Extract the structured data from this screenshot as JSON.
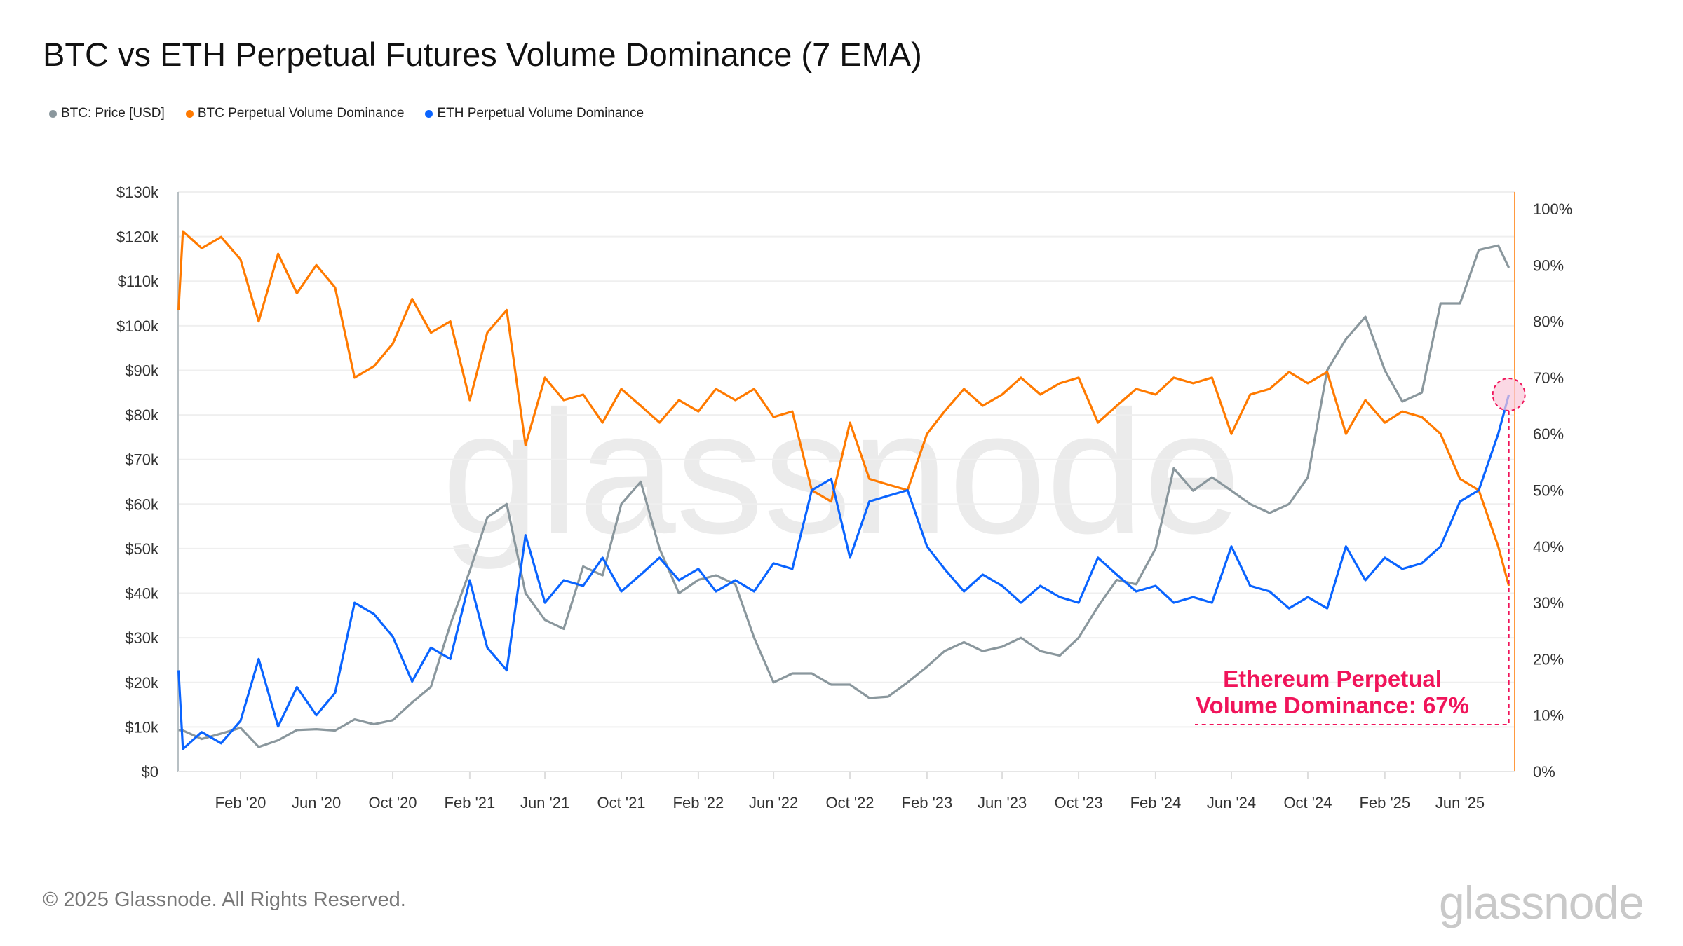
{
  "title": "BTC vs ETH Perpetual Futures Volume Dominance (7 EMA)",
  "legend": [
    {
      "label": "BTC: Price [USD]",
      "color": "#8a979d"
    },
    {
      "label": "BTC Perpetual Volume Dominance",
      "color": "#ff7a00"
    },
    {
      "label": "ETH Perpetual Volume Dominance",
      "color": "#0a64ff"
    }
  ],
  "footer": "© 2025 Glassnode. All Rights Reserved.",
  "logo": "glassnode",
  "watermark": "glassnode",
  "annotation": {
    "line1": "Ethereum Perpetual",
    "line2": "Volume Dominance: 67%",
    "color": "#f0145a"
  },
  "chart_data": {
    "type": "line",
    "title": "BTC vs ETH Perpetual Futures Volume Dominance (7 EMA)",
    "grid": true,
    "legend_position": "top-left",
    "y_left": {
      "range": [
        0,
        130000
      ],
      "ticks": [
        "$0",
        "$10k",
        "$20k",
        "$30k",
        "$40k",
        "$50k",
        "$60k",
        "$70k",
        "$80k",
        "$90k",
        "$100k",
        "$110k",
        "$120k",
        "$130k"
      ]
    },
    "y_right": {
      "range": [
        0,
        100
      ],
      "ticks": [
        "0%",
        "10%",
        "20%",
        "30%",
        "40%",
        "50%",
        "60%",
        "70%",
        "80%",
        "90%",
        "100%"
      ]
    },
    "x_ticks": [
      {
        "label": "Feb '20",
        "date": "2020-02-01"
      },
      {
        "label": "Jun '20",
        "date": "2020-06-01"
      },
      {
        "label": "Oct '20",
        "date": "2020-10-01"
      },
      {
        "label": "Feb '21",
        "date": "2021-02-01"
      },
      {
        "label": "Jun '21",
        "date": "2021-06-01"
      },
      {
        "label": "Oct '21",
        "date": "2021-10-01"
      },
      {
        "label": "Feb '22",
        "date": "2022-02-01"
      },
      {
        "label": "Jun '22",
        "date": "2022-06-01"
      },
      {
        "label": "Oct '22",
        "date": "2022-10-01"
      },
      {
        "label": "Feb '23",
        "date": "2023-02-01"
      },
      {
        "label": "Jun '23",
        "date": "2023-06-01"
      },
      {
        "label": "Oct '23",
        "date": "2023-10-01"
      },
      {
        "label": "Feb '24",
        "date": "2024-02-01"
      },
      {
        "label": "Jun '24",
        "date": "2024-06-01"
      },
      {
        "label": "Oct '24",
        "date": "2024-10-01"
      },
      {
        "label": "Feb '25",
        "date": "2025-02-01"
      },
      {
        "label": "Jun '25",
        "date": "2025-06-01"
      }
    ],
    "dates": [
      "2019-10-25",
      "2019-11-01",
      "2019-12-01",
      "2020-01-01",
      "2020-02-01",
      "2020-03-01",
      "2020-04-01",
      "2020-05-01",
      "2020-06-01",
      "2020-07-01",
      "2020-08-01",
      "2020-09-01",
      "2020-10-01",
      "2020-11-01",
      "2020-12-01",
      "2021-01-01",
      "2021-02-01",
      "2021-03-01",
      "2021-04-01",
      "2021-05-01",
      "2021-06-01",
      "2021-07-01",
      "2021-08-01",
      "2021-09-01",
      "2021-10-01",
      "2021-11-01",
      "2021-12-01",
      "2022-01-01",
      "2022-02-01",
      "2022-03-01",
      "2022-04-01",
      "2022-05-01",
      "2022-06-01",
      "2022-07-01",
      "2022-08-01",
      "2022-09-01",
      "2022-10-01",
      "2022-11-01",
      "2022-12-01",
      "2023-01-01",
      "2023-02-01",
      "2023-03-01",
      "2023-04-01",
      "2023-05-01",
      "2023-06-01",
      "2023-07-01",
      "2023-08-01",
      "2023-09-01",
      "2023-10-01",
      "2023-11-01",
      "2023-12-01",
      "2024-01-01",
      "2024-02-01",
      "2024-03-01",
      "2024-04-01",
      "2024-05-01",
      "2024-06-01",
      "2024-07-01",
      "2024-08-01",
      "2024-09-01",
      "2024-10-01",
      "2024-11-01",
      "2024-12-01",
      "2025-01-01",
      "2025-02-01",
      "2025-03-01",
      "2025-04-01",
      "2025-05-01",
      "2025-06-01",
      "2025-07-01",
      "2025-08-01",
      "2025-08-18"
    ],
    "series": [
      {
        "name": "BTC: Price [USD]",
        "axis": "left",
        "color": "#8a979d",
        "values": [
          9300,
          9200,
          7300,
          8500,
          9800,
          5500,
          7000,
          9300,
          9500,
          9200,
          11700,
          10600,
          11500,
          15500,
          19000,
          33000,
          45000,
          57000,
          60000,
          40000,
          34000,
          32000,
          46000,
          44000,
          60000,
          65000,
          50000,
          40000,
          43000,
          44000,
          42000,
          30000,
          20000,
          22000,
          22000,
          19500,
          19500,
          16500,
          16800,
          20000,
          23500,
          27000,
          29000,
          27000,
          28000,
          30000,
          27000,
          26000,
          30000,
          37000,
          43000,
          42000,
          50000,
          68000,
          63000,
          66000,
          63000,
          60000,
          58000,
          60000,
          66000,
          90000,
          97000,
          102000,
          90000,
          83000,
          85000,
          105000,
          105000,
          117000,
          118000,
          113000
        ]
      },
      {
        "name": "BTC Perpetual Volume Dominance",
        "axis": "right",
        "color": "#ff7a00",
        "values": [
          82,
          96,
          93,
          95,
          91,
          80,
          92,
          85,
          90,
          86,
          70,
          72,
          76,
          84,
          78,
          80,
          66,
          78,
          82,
          58,
          70,
          66,
          67,
          62,
          68,
          65,
          62,
          66,
          64,
          68,
          66,
          68,
          63,
          64,
          50,
          48,
          62,
          52,
          51,
          50,
          60,
          64,
          68,
          65,
          67,
          70,
          67,
          69,
          70,
          62,
          65,
          68,
          67,
          70,
          69,
          70,
          60,
          67,
          68,
          71,
          69,
          71,
          60,
          66,
          62,
          64,
          63,
          60,
          52,
          50,
          40,
          33
        ]
      },
      {
        "name": "ETH Perpetual Volume Dominance",
        "axis": "right",
        "color": "#0a64ff",
        "values": [
          18,
          4,
          7,
          5,
          9,
          20,
          8,
          15,
          10,
          14,
          30,
          28,
          24,
          16,
          22,
          20,
          34,
          22,
          18,
          42,
          30,
          34,
          33,
          38,
          32,
          35,
          38,
          34,
          36,
          32,
          34,
          32,
          37,
          36,
          50,
          52,
          38,
          48,
          49,
          50,
          40,
          36,
          32,
          35,
          33,
          30,
          33,
          31,
          30,
          38,
          35,
          32,
          33,
          30,
          31,
          30,
          40,
          33,
          32,
          29,
          31,
          29,
          40,
          34,
          38,
          36,
          37,
          40,
          48,
          50,
          60,
          67
        ]
      }
    ]
  }
}
